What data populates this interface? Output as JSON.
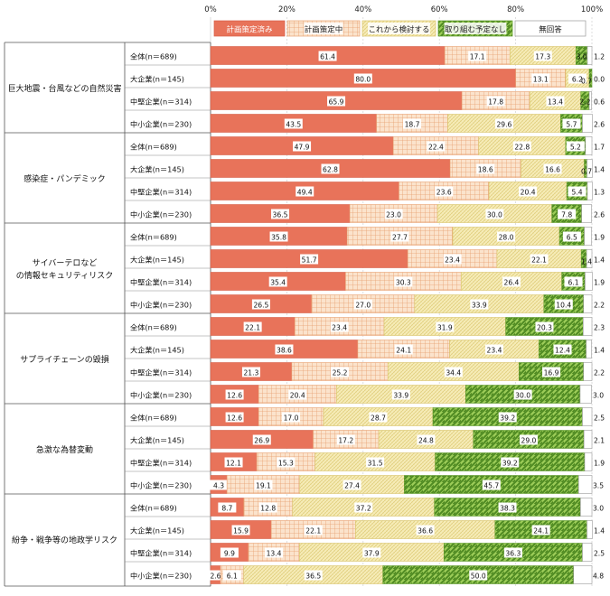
{
  "chart_data": {
    "type": "bar",
    "stacked": true,
    "orientation": "horizontal",
    "xlim": [
      0,
      100
    ],
    "ticks": [
      "0%",
      "20%",
      "40%",
      "60%",
      "80%",
      "100%"
    ],
    "legend": [
      "計画策定済み",
      "計画策定中",
      "これから検討する",
      "取り組む予定なし",
      "無回答"
    ],
    "colors": {
      "done": "#e8735a",
      "in_progress": "#f5c9a8",
      "consider": "#f0e6a8",
      "none": "#8ab84a",
      "na": "#ffffff"
    },
    "group_labels": [
      "巨大地震・台風などの自然災害",
      "感染症・パンデミック",
      "サイバーテロなどの情報セキュリティリスク",
      "サプライチェーンの毀損",
      "急激な為替変動",
      "紛争・戦争等の地政学リスク"
    ],
    "row_labels": [
      "全体(n＝689)",
      "大企業(n＝145)",
      "中堅企業(n＝314)",
      "中小企業(n＝230)"
    ],
    "groups": [
      {
        "rows": [
          [
            61.4,
            17.1,
            17.3,
            3.0,
            1.2
          ],
          [
            80.0,
            13.1,
            6.2,
            0.7,
            0.0
          ],
          [
            65.9,
            17.8,
            13.4,
            2.2,
            0.6
          ],
          [
            43.5,
            18.7,
            29.6,
            5.7,
            2.6
          ]
        ]
      },
      {
        "rows": [
          [
            47.9,
            22.4,
            22.8,
            5.2,
            1.7
          ],
          [
            62.8,
            18.6,
            16.6,
            0.7,
            1.4
          ],
          [
            49.4,
            23.6,
            20.4,
            5.4,
            1.3
          ],
          [
            36.5,
            23.0,
            30.0,
            7.8,
            2.6
          ]
        ]
      },
      {
        "rows": [
          [
            35.8,
            27.7,
            28.0,
            6.5,
            1.9
          ],
          [
            51.7,
            23.4,
            22.1,
            1.4,
            1.4
          ],
          [
            35.4,
            30.3,
            26.4,
            6.1,
            1.9
          ],
          [
            26.5,
            27.0,
            33.9,
            10.4,
            2.2
          ]
        ]
      },
      {
        "rows": [
          [
            22.1,
            23.4,
            31.9,
            20.3,
            2.3
          ],
          [
            38.6,
            24.1,
            23.4,
            12.4,
            1.4
          ],
          [
            21.3,
            25.2,
            34.4,
            16.9,
            2.2
          ],
          [
            12.6,
            20.4,
            33.9,
            30.0,
            3.0
          ]
        ]
      },
      {
        "rows": [
          [
            12.6,
            17.0,
            28.7,
            39.2,
            2.5
          ],
          [
            26.9,
            17.2,
            24.8,
            29.0,
            2.1
          ],
          [
            12.1,
            15.3,
            31.5,
            39.2,
            1.9
          ],
          [
            4.3,
            19.1,
            27.4,
            45.7,
            3.5
          ]
        ]
      },
      {
        "rows": [
          [
            8.7,
            12.8,
            37.2,
            38.3,
            3.0
          ],
          [
            15.9,
            22.1,
            36.6,
            24.1,
            1.4
          ],
          [
            9.9,
            13.4,
            37.9,
            36.3,
            2.5
          ],
          [
            2.6,
            6.1,
            36.5,
            50.0,
            4.8
          ]
        ]
      }
    ]
  }
}
